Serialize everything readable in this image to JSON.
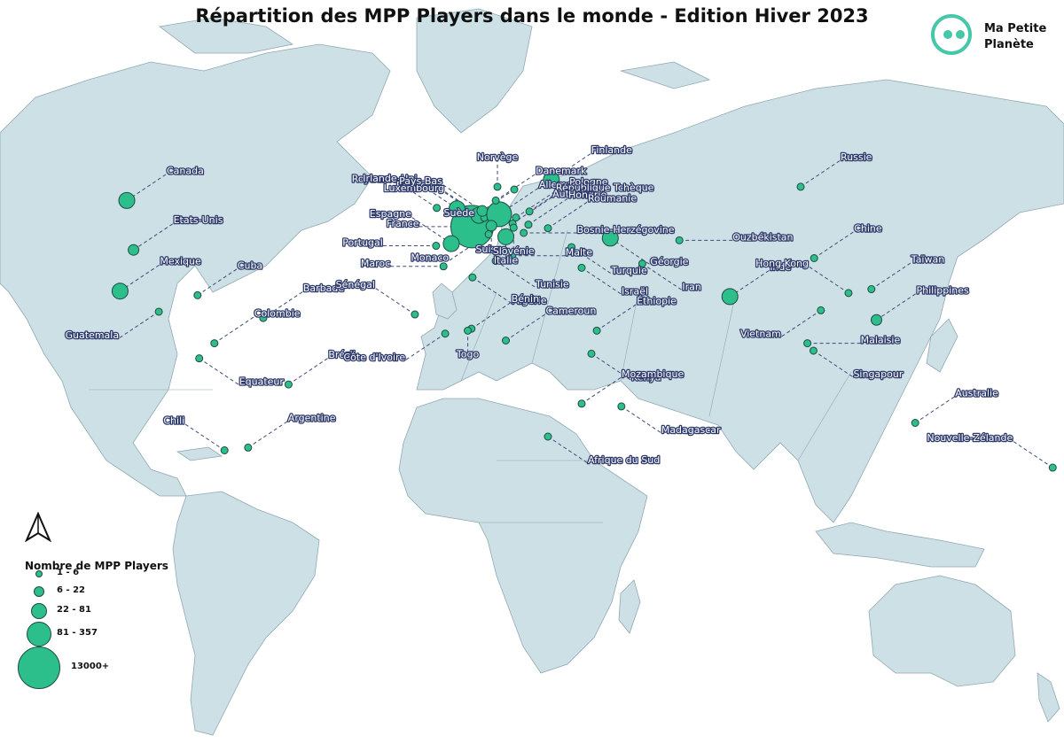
{
  "title": "Répartition des MPP Players dans le monde - Edition Hiver 2023",
  "logo": {
    "line1": "Ma Petite",
    "line2": "Planète",
    "icon": "planet-face-icon"
  },
  "north_arrow": "north-arrow-icon",
  "colors": {
    "ocean": "#ffffff",
    "land": "#cde0e5",
    "marker": "#2cbf8c",
    "label_outline": "#2d3a6b"
  },
  "legend": {
    "title": "Nombre de MPP Players",
    "classes": [
      "1 - 6",
      "6 - 22",
      "22 - 81",
      "81 - 357",
      "13000+"
    ]
  },
  "countries": [
    {
      "name": "Canada",
      "lon": -100,
      "lat": 56,
      "size_class": 3,
      "label": "right-up"
    },
    {
      "name": "Etats-Unis",
      "lon": -98,
      "lat": 38,
      "size_class": 2,
      "label": "right-up"
    },
    {
      "name": "Mexique",
      "lon": -102,
      "lat": 23,
      "size_class": 3,
      "label": "right-up"
    },
    {
      "name": "Cuba",
      "lon": -79,
      "lat": 21.5,
      "size_class": 1,
      "label": "right-up"
    },
    {
      "name": "Guatemala",
      "lon": -90.5,
      "lat": 15.5,
      "size_class": 1,
      "label": "left-down"
    },
    {
      "name": "Barbade",
      "lon": -59.5,
      "lat": 13.2,
      "size_class": 1,
      "label": "right-up"
    },
    {
      "name": "Colombie",
      "lon": -74,
      "lat": 4,
      "size_class": 1,
      "label": "right-up"
    },
    {
      "name": "Equateur",
      "lon": -78.5,
      "lat": -1.5,
      "size_class": 1,
      "label": "right-down"
    },
    {
      "name": "Brésil",
      "lon": -52,
      "lat": -11,
      "size_class": 1,
      "label": "right-up"
    },
    {
      "name": "Argentine",
      "lon": -64,
      "lat": -34,
      "size_class": 1,
      "label": "right-up"
    },
    {
      "name": "Chili",
      "lon": -71,
      "lat": -35,
      "size_class": 1,
      "label": "left-up"
    },
    {
      "name": "France",
      "lon": 2.5,
      "lat": 46.5,
      "size_class": 5,
      "label": "left"
    },
    {
      "name": "Royaume-Uni",
      "lon": -2,
      "lat": 53,
      "size_class": 3,
      "label": "left-up"
    },
    {
      "name": "Irlande",
      "lon": -8,
      "lat": 53.3,
      "size_class": 1,
      "label": "left-up"
    },
    {
      "name": "Belgique",
      "lon": 4.5,
      "lat": 50.6,
      "size_class": 3,
      "label": "left-up"
    },
    {
      "name": "Luxembourg",
      "lon": 6.1,
      "lat": 49.7,
      "size_class": 1,
      "label": "left-up"
    },
    {
      "name": "Pays-Bas",
      "lon": 5.5,
      "lat": 52.2,
      "size_class": 2,
      "label": "left-up"
    },
    {
      "name": "Allemagne",
      "lon": 10.5,
      "lat": 51,
      "size_class": 4,
      "label": "right-up"
    },
    {
      "name": "Suisse",
      "lon": 8.2,
      "lat": 46.8,
      "size_class": 2,
      "label": "down"
    },
    {
      "name": "Espagne",
      "lon": -3.7,
      "lat": 40.3,
      "size_class": 3,
      "label": "left-up"
    },
    {
      "name": "Portugal",
      "lon": -8.2,
      "lat": 39.5,
      "size_class": 1,
      "label": "left"
    },
    {
      "name": "Italie",
      "lon": 12.5,
      "lat": 42.8,
      "size_class": 3,
      "label": "down"
    },
    {
      "name": "Monaco",
      "lon": 7.4,
      "lat": 43.7,
      "size_class": 1,
      "label": "left-down"
    },
    {
      "name": "Malte",
      "lon": 14.4,
      "lat": 35.9,
      "size_class": 1,
      "label": "right"
    },
    {
      "name": "Norvège",
      "lon": 10,
      "lat": 61,
      "size_class": 1,
      "label": "up"
    },
    {
      "name": "Suède",
      "lon": 15,
      "lat": 60,
      "size_class": 1,
      "label": "left-down"
    },
    {
      "name": "Finlande",
      "lon": 26,
      "lat": 63.5,
      "size_class": 3,
      "label": "right-up"
    },
    {
      "name": "Danemark",
      "lon": 9.5,
      "lat": 56,
      "size_class": 1,
      "label": "right-up"
    },
    {
      "name": "Pologne",
      "lon": 19.5,
      "lat": 52,
      "size_class": 1,
      "label": "right-up"
    },
    {
      "name": "République Tchèque",
      "lon": 15.5,
      "lat": 49.8,
      "size_class": 1,
      "label": "right-up"
    },
    {
      "name": "Autriche",
      "lon": 14.5,
      "lat": 47.6,
      "size_class": 1,
      "label": "right-up"
    },
    {
      "name": "Hongrie",
      "lon": 19.2,
      "lat": 47.2,
      "size_class": 1,
      "label": "right-up"
    },
    {
      "name": "Roumanie",
      "lon": 25,
      "lat": 45.9,
      "size_class": 1,
      "label": "right-up"
    },
    {
      "name": "Bosnie-Herzégovine",
      "lon": 17.8,
      "lat": 44.2,
      "size_class": 1,
      "label": "right"
    },
    {
      "name": "Slovénie",
      "lon": 14.8,
      "lat": 46.1,
      "size_class": 1,
      "label": "down"
    },
    {
      "name": "Turquie",
      "lon": 32,
      "lat": 39,
      "size_class": 1,
      "label": "right-down"
    },
    {
      "name": "Géorgie",
      "lon": 43.5,
      "lat": 42.3,
      "size_class": 3,
      "label": "right-down"
    },
    {
      "name": "Ouzbékistan",
      "lon": 64,
      "lat": 41.5,
      "size_class": 1,
      "label": "right"
    },
    {
      "name": "Russie",
      "lon": 100,
      "lat": 61,
      "size_class": 1,
      "label": "right-up"
    },
    {
      "name": "Chine",
      "lon": 104,
      "lat": 35,
      "size_class": 1,
      "label": "right-up"
    },
    {
      "name": "Israël",
      "lon": 35,
      "lat": 31.5,
      "size_class": 1,
      "label": "right-down"
    },
    {
      "name": "Iran",
      "lon": 53,
      "lat": 33,
      "size_class": 1,
      "label": "right-down"
    },
    {
      "name": "Inde",
      "lon": 79,
      "lat": 21,
      "size_class": 3,
      "label": "right-up"
    },
    {
      "name": "Hong Kong",
      "lon": 114.2,
      "lat": 22.3,
      "size_class": 1,
      "label": "left-up"
    },
    {
      "name": "Taïwan",
      "lon": 121,
      "lat": 23.7,
      "size_class": 1,
      "label": "right-up"
    },
    {
      "name": "Philippines",
      "lon": 122.5,
      "lat": 12.5,
      "size_class": 2,
      "label": "right-up"
    },
    {
      "name": "Vietnam",
      "lon": 106,
      "lat": 16,
      "size_class": 1,
      "label": "left-down"
    },
    {
      "name": "Malaisie",
      "lon": 102,
      "lat": 4,
      "size_class": 1,
      "label": "right"
    },
    {
      "name": "Singapour",
      "lon": 103.8,
      "lat": 1.3,
      "size_class": 1,
      "label": "right-down"
    },
    {
      "name": "Australie",
      "lon": 134,
      "lat": -25,
      "size_class": 1,
      "label": "right-up"
    },
    {
      "name": "Nouvelle-Zélande",
      "lon": 174.8,
      "lat": -41.3,
      "size_class": 1,
      "label": "left-up"
    },
    {
      "name": "Maroc",
      "lon": -6,
      "lat": 32,
      "size_class": 1,
      "label": "left"
    },
    {
      "name": "Tunisie",
      "lon": 9.5,
      "lat": 34,
      "size_class": 1,
      "label": "right-down"
    },
    {
      "name": "Algérie",
      "lon": 2.6,
      "lat": 28,
      "size_class": 1,
      "label": "right-down"
    },
    {
      "name": "Sénégal",
      "lon": -14.5,
      "lat": 14.5,
      "size_class": 1,
      "label": "left-up"
    },
    {
      "name": "Côte d'Ivoire",
      "lon": -5.5,
      "lat": 7.5,
      "size_class": 1,
      "label": "left-down"
    },
    {
      "name": "Bénin",
      "lon": 2.3,
      "lat": 9.3,
      "size_class": 1,
      "label": "right-up"
    },
    {
      "name": "Togo",
      "lon": 1.2,
      "lat": 8.6,
      "size_class": 1,
      "label": "down"
    },
    {
      "name": "Cameroun",
      "lon": 12.5,
      "lat": 5,
      "size_class": 1,
      "label": "right-up"
    },
    {
      "name": "Éthiopie",
      "lon": 39.5,
      "lat": 8.6,
      "size_class": 1,
      "label": "right-up"
    },
    {
      "name": "Kenya",
      "lon": 37.9,
      "lat": 0.2,
      "size_class": 1,
      "label": "right-down"
    },
    {
      "name": "Mozambique",
      "lon": 35,
      "lat": -18,
      "size_class": 1,
      "label": "right-up"
    },
    {
      "name": "Madagascar",
      "lon": 46.8,
      "lat": -19,
      "size_class": 1,
      "label": "right-down"
    },
    {
      "name": "Afrique du Sud",
      "lon": 25,
      "lat": -30,
      "size_class": 1,
      "label": "right-down"
    }
  ]
}
